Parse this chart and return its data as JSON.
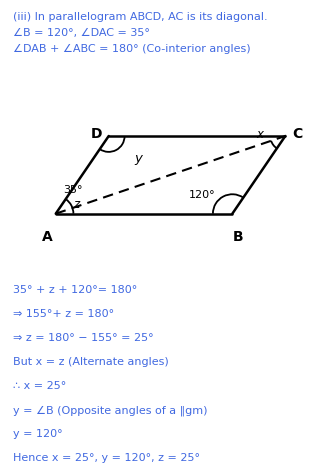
{
  "title_line": "(iii) In parallelogram ABCD, AC is its diagonal.",
  "line2": "∠B = 120°, ∠DAC = 35°",
  "line3": "∠DAB + ∠ABC = 180° (Co-interior angles)",
  "solution_lines": [
    "35° + z + 120°= 180°",
    "⇒ 155°+ z = 180°",
    "⇒ z = 180° − 155° = 25°",
    "But x = z (Alternate angles)",
    "∴ x = 25°",
    "y = ∠B (Opposite angles of a ‖gm)",
    "y = 120°",
    "Hence x = 25°, y = 120°, z = 25°"
  ],
  "text_color": "#4169E1",
  "diagram_color": "#000000",
  "bg_color": "#ffffff",
  "A": [
    1.0,
    0.0
  ],
  "B": [
    6.0,
    0.0
  ],
  "C": [
    7.5,
    2.2
  ],
  "D": [
    2.5,
    2.2
  ]
}
